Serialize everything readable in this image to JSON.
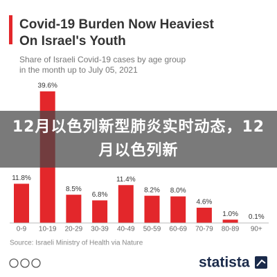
{
  "chart_data": {
    "type": "bar",
    "title_lines": [
      "Covid-19 Burden Now Heaviest",
      "On Israel's Youth"
    ],
    "subtitle_lines": [
      "Share of Israeli Covid-19 cases by age group",
      "in the month up to July 05, 2021"
    ],
    "categories": [
      "0-9",
      "10-19",
      "20-29",
      "30-39",
      "40-49",
      "50-59",
      "60-69",
      "70-79",
      "80-89",
      "90+"
    ],
    "values": [
      11.8,
      39.6,
      8.5,
      6.8,
      11.4,
      8.2,
      8.0,
      4.6,
      1.0,
      0.1
    ],
    "value_labels": [
      "11.8%",
      "39.6%",
      "8.5%",
      "6.8%",
      "11.4%",
      "8.2%",
      "8.0%",
      "4.6%",
      "1.0%",
      "0.1%"
    ],
    "color": "#e3272b",
    "source": "Source: Israeli Ministry of Health via Nature",
    "brand": "statista"
  },
  "overlay_text": "12月以色列新型肺炎实时动态，12月以色列新"
}
